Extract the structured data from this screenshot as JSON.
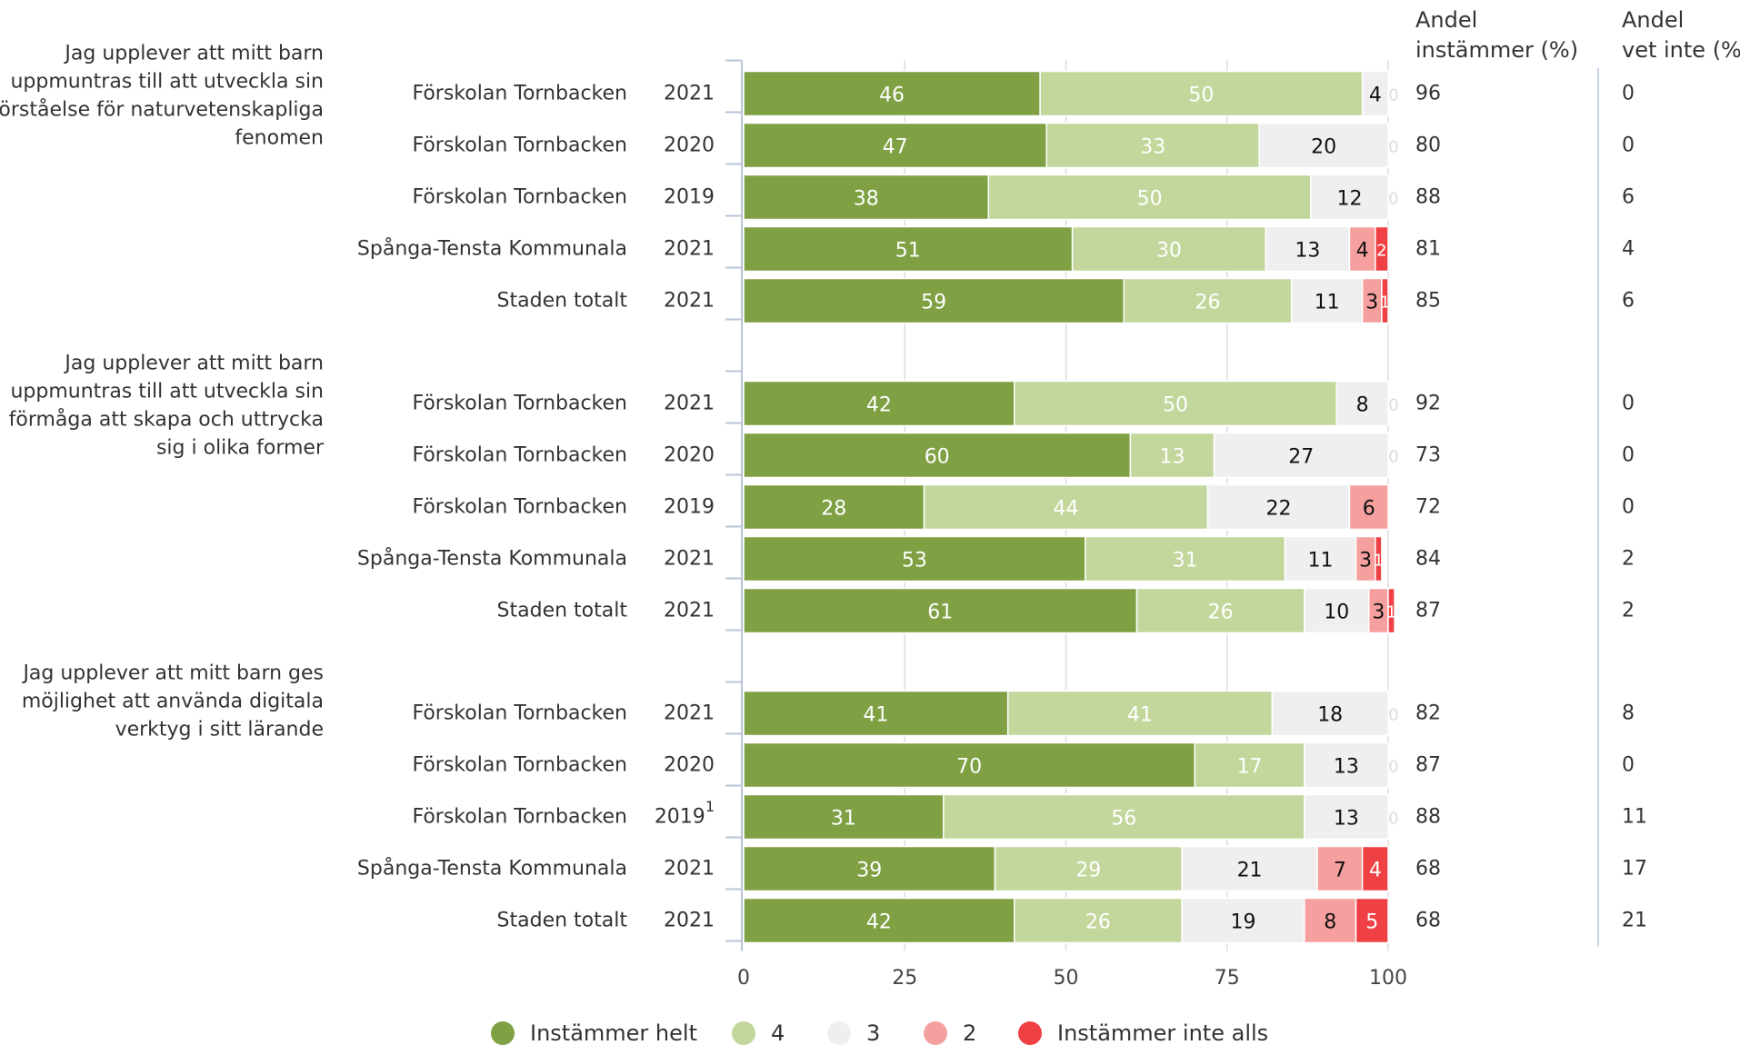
{
  "chart_data": {
    "type": "bar",
    "stacked": true,
    "orientation": "horizontal",
    "xlim": [
      0,
      100
    ],
    "x_ticks": [
      "0",
      "25",
      "50",
      "75",
      "100"
    ],
    "grid": true,
    "legend_position": "bottom",
    "col_header_1": [
      "Andel",
      "instämmer (%)"
    ],
    "col_header_2": [
      "Andel",
      "vet inte (%)"
    ],
    "series": [
      {
        "name": "Instämmer helt",
        "color": "#7fa043"
      },
      {
        "name": "4",
        "color": "#c3d79c"
      },
      {
        "name": "3",
        "color": "#efefef"
      },
      {
        "name": "2",
        "color": "#f5a09e"
      },
      {
        "name": "Instämmer inte alls",
        "color": "#ef4044"
      }
    ],
    "groups": [
      {
        "question": [
          "Jag upplever att mitt barn",
          "uppmuntras till att utveckla sin",
          "förståelse för naturvetenskapliga",
          "fenomen"
        ],
        "rows": [
          {
            "label": "Förskolan Tornbacken",
            "year": "2021",
            "note": "",
            "values": [
              46,
              50,
              4,
              0,
              0
            ],
            "andel_instammer": "96",
            "andel_vet_inte": "0"
          },
          {
            "label": "Förskolan Tornbacken",
            "year": "2020",
            "note": "",
            "values": [
              47,
              33,
              20,
              0,
              0
            ],
            "andel_instammer": "80",
            "andel_vet_inte": "0"
          },
          {
            "label": "Förskolan Tornbacken",
            "year": "2019",
            "note": "",
            "values": [
              38,
              50,
              12,
              0,
              0
            ],
            "andel_instammer": "88",
            "andel_vet_inte": "6"
          },
          {
            "label": "Spånga-Tensta Kommunala",
            "year": "2021",
            "note": "",
            "values": [
              51,
              30,
              13,
              4,
              2
            ],
            "andel_instammer": "81",
            "andel_vet_inte": "4"
          },
          {
            "label": "Staden totalt",
            "year": "2021",
            "note": "",
            "values": [
              59,
              26,
              11,
              3,
              1
            ],
            "andel_instammer": "85",
            "andel_vet_inte": "6"
          }
        ]
      },
      {
        "question": [
          "Jag upplever att mitt barn",
          "uppmuntras till att utveckla sin",
          "förmåga att skapa och uttrycka",
          "sig i olika former"
        ],
        "rows": [
          {
            "label": "Förskolan Tornbacken",
            "year": "2021",
            "note": "",
            "values": [
              42,
              50,
              8,
              0,
              0
            ],
            "andel_instammer": "92",
            "andel_vet_inte": "0"
          },
          {
            "label": "Förskolan Tornbacken",
            "year": "2020",
            "note": "",
            "values": [
              60,
              13,
              27,
              0,
              0
            ],
            "andel_instammer": "73",
            "andel_vet_inte": "0"
          },
          {
            "label": "Förskolan Tornbacken",
            "year": "2019",
            "note": "",
            "values": [
              28,
              44,
              22,
              6,
              0
            ],
            "andel_instammer": "72",
            "andel_vet_inte": "0"
          },
          {
            "label": "Spånga-Tensta Kommunala",
            "year": "2021",
            "note": "",
            "values": [
              53,
              31,
              11,
              3,
              1
            ],
            "andel_instammer": "84",
            "andel_vet_inte": "2"
          },
          {
            "label": "Staden totalt",
            "year": "2021",
            "note": "",
            "values": [
              61,
              26,
              10,
              3,
              1
            ],
            "andel_instammer": "87",
            "andel_vet_inte": "2"
          }
        ]
      },
      {
        "question": [
          "Jag upplever att mitt barn ges",
          "möjlighet att använda digitala",
          "verktyg i sitt lärande"
        ],
        "rows": [
          {
            "label": "Förskolan Tornbacken",
            "year": "2021",
            "note": "",
            "values": [
              41,
              41,
              18,
              0,
              0
            ],
            "andel_instammer": "82",
            "andel_vet_inte": "8"
          },
          {
            "label": "Förskolan Tornbacken",
            "year": "2020",
            "note": "",
            "values": [
              70,
              17,
              13,
              0,
              0
            ],
            "andel_instammer": "87",
            "andel_vet_inte": "0"
          },
          {
            "label": "Förskolan Tornbacken",
            "year": "2019",
            "note": "1",
            "values": [
              31,
              56,
              13,
              0,
              0
            ],
            "andel_instammer": "88",
            "andel_vet_inte": "11"
          },
          {
            "label": "Spånga-Tensta Kommunala",
            "year": "2021",
            "note": "",
            "values": [
              39,
              29,
              21,
              7,
              4
            ],
            "andel_instammer": "68",
            "andel_vet_inte": "17"
          },
          {
            "label": "Staden totalt",
            "year": "2021",
            "note": "",
            "values": [
              42,
              26,
              19,
              8,
              5
            ],
            "andel_instammer": "68",
            "andel_vet_inte": "21"
          }
        ]
      }
    ]
  }
}
